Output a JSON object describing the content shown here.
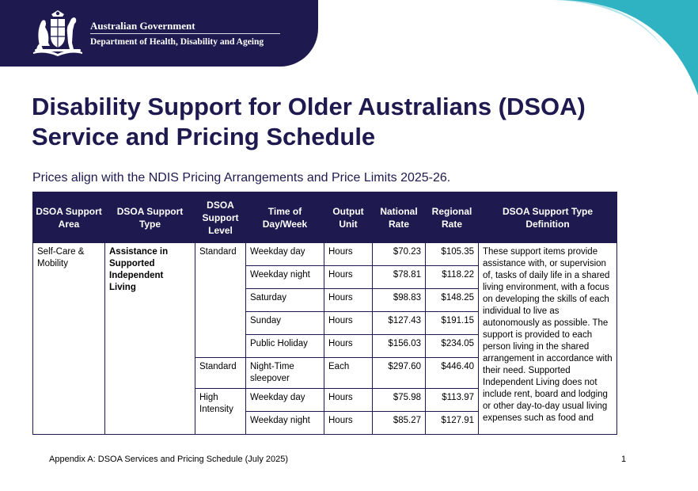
{
  "header": {
    "government": "Australian Government",
    "department": "Department of Health, Disability and Ageing"
  },
  "colors": {
    "navy": "#1e1a4f",
    "teal": "#2fb3c2"
  },
  "icons": {
    "crest": "commonwealth-coat-of-arms-icon"
  },
  "title_line1": "Disability Support for Older Australians (DSOA)",
  "title_line2": "Service and Pricing Schedule",
  "subtitle": "Prices align with the NDIS Pricing Arrangements and Price Limits 2025-26.",
  "table": {
    "headers": [
      "DSOA Support Area",
      "DSOA Support Type",
      "DSOA Support Level",
      "Time of Day/Week",
      "Output Unit",
      "National Rate",
      "Regional Rate",
      "DSOA Support Type Definition"
    ],
    "area": "Self-Care & Mobility",
    "support_type": "Assistance in Supported Independent Living",
    "levels": [
      "Standard",
      "Standard",
      "High Intensity"
    ],
    "rows": [
      {
        "time": "Weekday day",
        "unit": "Hours",
        "national": "$70.23",
        "regional": "$105.35"
      },
      {
        "time": "Weekday night",
        "unit": "Hours",
        "national": "$78.81",
        "regional": "$118.22"
      },
      {
        "time": "Saturday",
        "unit": "Hours",
        "national": "$98.83",
        "regional": "$148.25"
      },
      {
        "time": "Sunday",
        "unit": "Hours",
        "national": "$127.43",
        "regional": "$191.15"
      },
      {
        "time": "Public Holiday",
        "unit": "Hours",
        "national": "$156.03",
        "regional": "$234.05"
      },
      {
        "time": "Night-Time sleepover",
        "unit": "Each",
        "national": "$297.60",
        "regional": "$446.40"
      },
      {
        "time": "Weekday day",
        "unit": "Hours",
        "national": "$75.98",
        "regional": "$113.97"
      },
      {
        "time": "Weekday night",
        "unit": "Hours",
        "national": "$85.27",
        "regional": "$127.91"
      }
    ],
    "definition": "These support items provide assistance with, or supervision of, tasks of daily life in a shared living environment, with a focus on developing the skills of each individual to live as autonomously as possible. The support is provided to each person living in the shared arrangement in accordance with their need. Supported Independent Living does not include rent, board and lodging or other day-to-day usual living expenses such as food and"
  },
  "footer": {
    "text": "Appendix A: DSOA Services and Pricing Schedule (July 2025)",
    "page": "1"
  }
}
